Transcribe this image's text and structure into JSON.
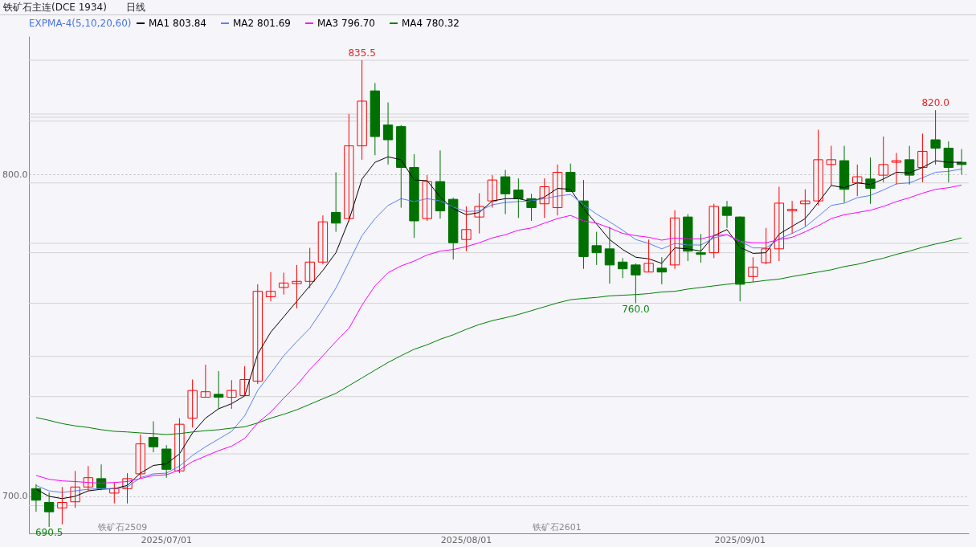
{
  "chart_data": {
    "type": "candlestick",
    "title": "铁矿石主连(DCE 1934)",
    "subtitle": "日线",
    "categories": [
      null,
      null,
      null,
      null,
      null,
      null,
      null,
      null,
      null,
      null,
      "2025/07/01",
      null,
      null,
      null,
      null,
      null,
      null,
      null,
      null,
      null,
      null,
      null,
      null,
      null,
      null,
      null,
      null,
      null,
      null,
      null,
      null,
      null,
      null,
      "2025/08/01",
      null,
      null,
      null,
      null,
      null,
      null,
      null,
      null,
      null,
      null,
      null,
      null,
      null,
      null,
      null,
      null,
      null,
      null,
      null,
      null,
      "2025/09/01",
      null,
      null,
      null,
      null,
      null,
      null,
      null,
      null,
      null,
      null,
      null,
      null,
      null,
      null,
      null,
      null,
      null
    ],
    "ohlc": [
      [
        702.4,
        703.8,
        695.2,
        698.8
      ],
      [
        698.1,
        701.2,
        690.5,
        695.2
      ],
      [
        696.4,
        702.9,
        691.3,
        698.1
      ],
      [
        698.3,
        707.9,
        696.4,
        702.9
      ],
      [
        702.9,
        709.4,
        701.7,
        705.8
      ],
      [
        705.5,
        709.9,
        701.9,
        702.6
      ],
      [
        701.0,
        704.3,
        697.8,
        702.4
      ],
      [
        702.4,
        707.2,
        697.8,
        705.5
      ],
      [
        707.0,
        719.2,
        705.8,
        716.3
      ],
      [
        718.3,
        723.3,
        713.7,
        715.4
      ],
      [
        714.7,
        715.9,
        705.8,
        708.4
      ],
      [
        707.9,
        724.3,
        707.2,
        722.4
      ],
      [
        724.3,
        736.3,
        721.4,
        732.9
      ],
      [
        730.8,
        740.9,
        730.8,
        732.5
      ],
      [
        731.7,
        738.9,
        727.2,
        730.8
      ],
      [
        730.8,
        736.1,
        727.2,
        732.9
      ],
      [
        731.3,
        740.4,
        731.3,
        736.3
      ],
      [
        735.8,
        765.9,
        734.9,
        763.7
      ],
      [
        762.0,
        769.7,
        760.6,
        763.7
      ],
      [
        764.9,
        769.5,
        762.7,
        766.3
      ],
      [
        766.1,
        771.9,
        758.4,
        766.8
      ],
      [
        766.8,
        777.2,
        764.7,
        772.8
      ],
      [
        772.8,
        787.3,
        772.1,
        785.3
      ],
      [
        788.2,
        800.7,
        782.2,
        784.9
      ],
      [
        786.3,
        818.8,
        785.3,
        808.9
      ],
      [
        808.9,
        835.5,
        804.6,
        822.8
      ],
      [
        826.0,
        828.4,
        806.0,
        811.8
      ],
      [
        815.4,
        822.4,
        803.1,
        810.8
      ],
      [
        814.9,
        815.4,
        789.7,
        802.2
      ],
      [
        802.2,
        806.3,
        780.3,
        785.6
      ],
      [
        786.3,
        799.8,
        785.6,
        797.8
      ],
      [
        797.8,
        807.5,
        786.3,
        788.7
      ],
      [
        792.3,
        792.8,
        773.6,
        778.8
      ],
      [
        779.8,
        790.1,
        776.2,
        782.9
      ],
      [
        786.8,
        794.2,
        781.7,
        790.1
      ],
      [
        791.8,
        799.8,
        789.7,
        798.3
      ],
      [
        799.3,
        801.4,
        787.7,
        794.0
      ],
      [
        795.2,
        798.8,
        786.5,
        792.5
      ],
      [
        792.5,
        794.0,
        785.6,
        789.7
      ],
      [
        790.9,
        798.8,
        786.5,
        796.2
      ],
      [
        789.7,
        803.1,
        787.3,
        800.7
      ],
      [
        800.7,
        803.4,
        794.7,
        794.7
      ],
      [
        791.8,
        798.3,
        770.7,
        774.5
      ],
      [
        777.9,
        782.2,
        771.9,
        775.7
      ],
      [
        776.9,
        783.7,
        766.1,
        771.9
      ],
      [
        772.8,
        774.0,
        767.8,
        770.7
      ],
      [
        771.9,
        772.4,
        760.0,
        768.8
      ],
      [
        769.7,
        779.8,
        769.7,
        772.4
      ],
      [
        770.9,
        774.3,
        765.9,
        769.7
      ],
      [
        771.9,
        788.9,
        770.7,
        786.5
      ],
      [
        786.8,
        787.7,
        773.1,
        776.2
      ],
      [
        775.7,
        781.5,
        772.6,
        775.2
      ],
      [
        775.7,
        790.9,
        774.0,
        790.1
      ],
      [
        789.9,
        791.8,
        783.4,
        787.3
      ],
      [
        786.8,
        787.0,
        760.6,
        765.9
      ],
      [
        768.3,
        774.3,
        766.6,
        771.2
      ],
      [
        772.6,
        783.4,
        772.1,
        776.9
      ],
      [
        776.9,
        796.2,
        773.1,
        791.1
      ],
      [
        788.7,
        791.8,
        781.7,
        789.2
      ],
      [
        790.9,
        795.4,
        783.9,
        791.8
      ],
      [
        791.8,
        813.9,
        790.4,
        804.6
      ],
      [
        803.1,
        808.9,
        796.6,
        804.6
      ],
      [
        804.3,
        808.9,
        791.3,
        795.4
      ],
      [
        797.4,
        803.1,
        793.3,
        799.3
      ],
      [
        798.6,
        805.3,
        790.9,
        795.7
      ],
      [
        799.8,
        811.8,
        797.6,
        803.1
      ],
      [
        803.8,
        806.7,
        796.9,
        804.3
      ],
      [
        804.6,
        808.9,
        796.9,
        799.8
      ],
      [
        802.2,
        812.7,
        797.6,
        807.2
      ],
      [
        810.8,
        820.0,
        803.1,
        808.2
      ],
      [
        808.2,
        810.3,
        797.6,
        802.2
      ],
      [
        803.8,
        807.9,
        800.0,
        803.1
      ]
    ],
    "colors": [
      "#007100",
      "#007100",
      "#ff0000",
      "#ff0000",
      "#ff0000",
      "#007100",
      "#ff0000",
      "#ff0000",
      "#ff0000",
      "#007100",
      "#007100",
      "#ff0000",
      "#ff0000",
      "#ff0000",
      "#007100",
      "#ff0000",
      "#ff0000",
      "#ff0000",
      "#ff0000",
      "#ff0000",
      "#ff0000",
      "#ff0000",
      "#ff0000",
      "#007100",
      "#ff0000",
      "#ff0000",
      "#007100",
      "#007100",
      "#007100",
      "#007100",
      "#ff0000",
      "#007100",
      "#007100",
      "#ff0000",
      "#ff0000",
      "#ff0000",
      "#007100",
      "#007100",
      "#007100",
      "#ff0000",
      "#ff0000",
      "#007100",
      "#007100",
      "#007100",
      "#007100",
      "#007100",
      "#007100",
      "#ff0000",
      "#007100",
      "#ff0000",
      "#007100",
      "#007100",
      "#ff0000",
      "#007100",
      "#007100",
      "#ff0000",
      "#ff0000",
      "#ff0000",
      "#ff0000",
      "#ff0000",
      "#ff0000",
      "#ff0000",
      "#007100",
      "#ff0000",
      "#007100",
      "#ff0000",
      "#ff0000",
      "#007100",
      "#ff0000",
      "#007100",
      "#007100",
      "#007100"
    ],
    "series": [
      {
        "name": "MA1 803.84",
        "type": "line",
        "color": "#000000",
        "values": [
          702.2,
          700.0,
          699.3,
          700.0,
          701.7,
          702.2,
          702.4,
          703.4,
          707.2,
          709.6,
          710.1,
          713.2,
          719.7,
          724.3,
          727.2,
          728.8,
          731.2,
          744.2,
          751.0,
          755.8,
          760.6,
          765.4,
          770.2,
          775.7,
          785.8,
          798.6,
          803.8,
          805.5,
          804.6,
          798.3,
          798.1,
          793.0,
          789.4,
          787.5,
          788.2,
          791.8,
          792.5,
          792.5,
          791.6,
          793.0,
          795.7,
          795.4,
          789.4,
          784.6,
          779.8,
          776.7,
          774.3,
          773.8,
          772.4,
          777.2,
          776.9,
          776.2,
          781.0,
          782.9,
          777.4,
          775.5,
          775.7,
          781.5,
          783.9,
          786.3,
          791.3,
          796.6,
          795.9,
          797.4,
          796.9,
          798.6,
          800.7,
          800.5,
          802.2,
          804.3,
          803.8,
          803.8
        ]
      },
      {
        "name": "MA2 801.69",
        "type": "line",
        "color": "#5a82f0",
        "values": [
          703.4,
          701.7,
          701.2,
          701.7,
          702.2,
          702.4,
          702.4,
          702.9,
          705.8,
          707.0,
          707.2,
          709.4,
          712.7,
          715.4,
          717.8,
          720.2,
          725.0,
          732.9,
          738.2,
          743.7,
          748.1,
          752.2,
          758.2,
          764.7,
          772.8,
          781.0,
          786.3,
          790.4,
          792.5,
          791.6,
          792.5,
          791.8,
          789.9,
          788.5,
          788.7,
          790.6,
          791.3,
          791.6,
          791.8,
          792.5,
          793.3,
          793.8,
          790.6,
          787.7,
          785.3,
          782.7,
          779.8,
          778.6,
          776.9,
          778.6,
          778.1,
          778.1,
          780.3,
          781.3,
          779.3,
          777.2,
          777.2,
          780.0,
          781.7,
          783.7,
          787.0,
          790.4,
          791.1,
          792.8,
          793.5,
          795.2,
          797.1,
          797.4,
          799.0,
          800.7,
          801.0,
          801.7
        ]
      },
      {
        "name": "MA3 796.70",
        "type": "line",
        "color": "#ff00ff",
        "values": [
          706.5,
          705.3,
          704.8,
          704.6,
          704.3,
          704.1,
          704.3,
          704.6,
          705.5,
          706.5,
          706.7,
          708.2,
          710.8,
          712.5,
          714.2,
          715.6,
          718.0,
          722.8,
          726.2,
          730.5,
          734.6,
          739.4,
          743.7,
          748.1,
          752.2,
          759.4,
          765.4,
          769.5,
          771.6,
          773.1,
          775.0,
          776.2,
          776.7,
          777.6,
          778.8,
          780.3,
          781.3,
          782.7,
          783.4,
          784.9,
          786.3,
          787.3,
          785.6,
          784.9,
          783.4,
          781.7,
          781.0,
          780.5,
          779.6,
          780.3,
          780.0,
          780.0,
          781.0,
          781.3,
          779.3,
          778.8,
          778.8,
          779.8,
          780.5,
          782.2,
          784.1,
          786.3,
          787.5,
          788.2,
          788.9,
          790.1,
          791.6,
          792.8,
          794.2,
          795.4,
          795.9,
          796.7
        ]
      },
      {
        "name": "MA4 780.32",
        "type": "line",
        "color": "#008000",
        "values": [
          724.5,
          723.6,
          722.6,
          721.9,
          721.4,
          720.7,
          720.2,
          720.0,
          719.7,
          719.5,
          719.2,
          719.5,
          720.0,
          720.4,
          720.7,
          721.2,
          721.6,
          722.8,
          724.3,
          725.5,
          726.9,
          728.6,
          730.3,
          732.0,
          734.4,
          736.8,
          739.2,
          741.6,
          743.7,
          745.7,
          747.1,
          748.8,
          750.2,
          751.9,
          753.4,
          754.6,
          755.5,
          756.5,
          757.7,
          758.9,
          760.1,
          761.1,
          761.5,
          761.8,
          762.3,
          762.5,
          762.7,
          763.0,
          763.5,
          763.7,
          764.4,
          764.9,
          765.4,
          765.9,
          766.3,
          766.6,
          767.1,
          767.5,
          768.3,
          769.0,
          769.7,
          770.4,
          771.4,
          772.1,
          773.1,
          774.0,
          775.2,
          776.2,
          777.4,
          778.4,
          779.3,
          780.3
        ]
      }
    ],
    "legend_title": "EXPMA-4(5,10,20,60)",
    "legend": "top left",
    "ylim": [
      688.5,
      843
    ],
    "yticks": [
      {
        "value": 700,
        "label": "700.0"
      },
      {
        "value": 800,
        "label": "800.0"
      }
    ],
    "grid": "y",
    "ref_lines": [
      {
        "axis": "y",
        "value": 835.5,
        "color": "#d4d4d4"
      },
      {
        "axis": "y",
        "value": 818.8,
        "color": "#d4d4d4"
      },
      {
        "axis": "y",
        "value": 817.8,
        "color": "#d4d4d4"
      },
      {
        "axis": "y",
        "value": 816.6,
        "color": "#d4d4d4"
      },
      {
        "axis": "y",
        "value": 797.4,
        "color": "#d4d4d4"
      },
      {
        "axis": "y",
        "value": 778.6,
        "color": "#d4d4d4"
      },
      {
        "axis": "y",
        "value": 775.7,
        "color": "#d4d4d4"
      },
      {
        "axis": "y",
        "value": 760.0,
        "color": "#d4d4d4"
      },
      {
        "axis": "y",
        "value": 743.5,
        "color": "#d4d4d4"
      },
      {
        "axis": "y",
        "value": 731.0,
        "color": "#d4d4d4"
      },
      {
        "axis": "y",
        "value": 713.2,
        "color": "#d4d4d4"
      },
      {
        "axis": "y",
        "value": 697.1,
        "color": "#d4d4d4"
      }
    ],
    "annotations": [
      {
        "text": "835.5",
        "y": 835.5
      },
      {
        "text": "820.0",
        "y": 820.0
      },
      {
        "text": "760.0",
        "y": 760.0
      },
      {
        "text": "690.5",
        "y": 690.5
      },
      "铁矿石2509",
      "铁矿石2601"
    ]
  }
}
